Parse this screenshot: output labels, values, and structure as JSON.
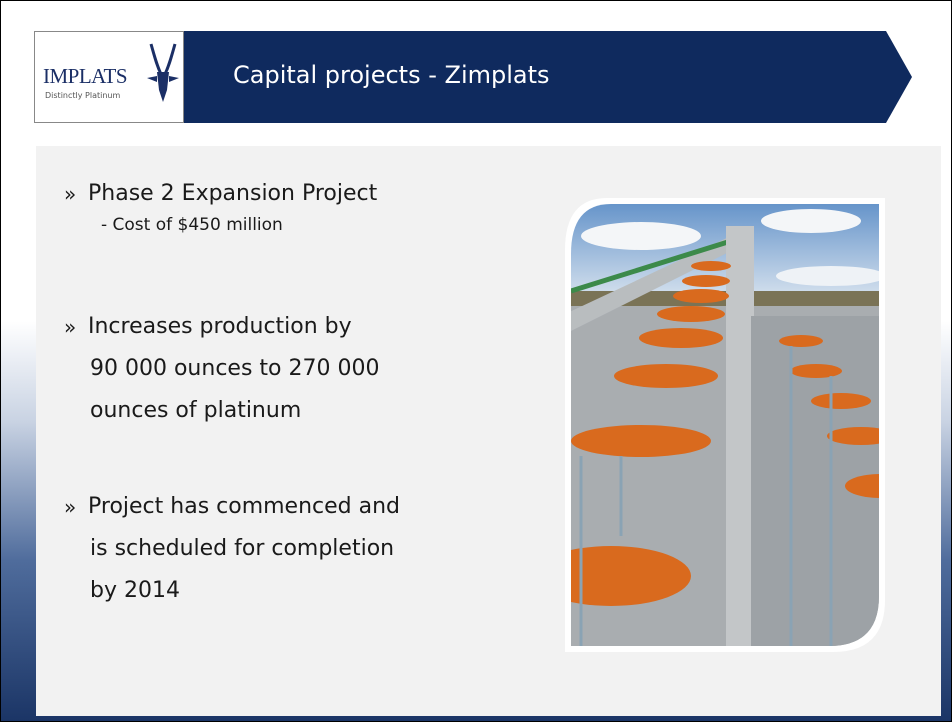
{
  "header": {
    "logo": {
      "name": "IMPLATS",
      "tagline": "Distinctly Platinum"
    },
    "title": "Capital projects - Zimplats"
  },
  "bullet_marker": "»",
  "bullets": [
    {
      "lines": [
        "Phase 2 Expansion Project"
      ],
      "sub": [
        "- Cost of $450 million"
      ]
    },
    {
      "lines": [
        "Increases production by",
        "90 000 ounces to 270 000",
        "ounces of platinum"
      ],
      "sub": []
    },
    {
      "lines": [
        "Project has commenced and",
        "is scheduled for completion",
        "by 2014"
      ],
      "sub": []
    }
  ]
}
